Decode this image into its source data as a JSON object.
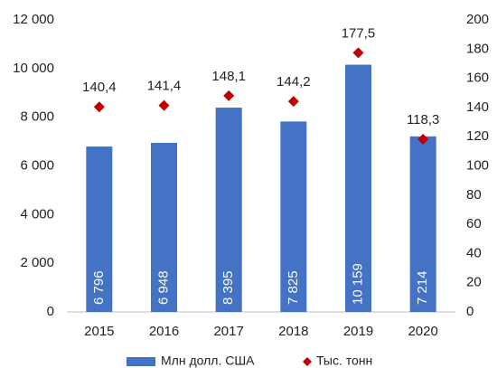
{
  "chart_data": {
    "type": "bar",
    "categories": [
      "2015",
      "2016",
      "2017",
      "2018",
      "2019",
      "2020"
    ],
    "series": [
      {
        "name": "Млн долл. США",
        "type": "bar",
        "color": "#4472c4",
        "values": [
          6796,
          6948,
          8395,
          7825,
          10159,
          7214
        ],
        "value_labels": [
          "6 796",
          "6 948",
          "8 395",
          "7 825",
          "10 159",
          "7 214"
        ]
      },
      {
        "name": "Тыс. тонн",
        "type": "scatter",
        "marker": "diamond",
        "axis": "y2",
        "color": "#c00000",
        "values": [
          140.4,
          141.4,
          148.1,
          144.2,
          177.5,
          118.3
        ],
        "value_labels": [
          "140,4",
          "141,4",
          "148,1",
          "144,2",
          "177,5",
          "118,3"
        ]
      }
    ],
    "ylim": [
      0,
      12000
    ],
    "yticks": [
      0,
      {
        "value": 2000,
        "label": "2 000"
      },
      {
        "value": 4000,
        "label": "4 000"
      },
      {
        "value": 6000,
        "label": "6 000"
      },
      {
        "value": 8000,
        "label": "8 000"
      },
      {
        "value": 10000,
        "label": "10 000"
      },
      {
        "value": 12000,
        "label": "12 000"
      }
    ],
    "y2lim": [
      0,
      200
    ],
    "y2ticks": [
      0,
      20,
      40,
      60,
      80,
      100,
      120,
      140,
      160,
      180,
      200
    ],
    "grid": false,
    "legend": "bottom"
  }
}
